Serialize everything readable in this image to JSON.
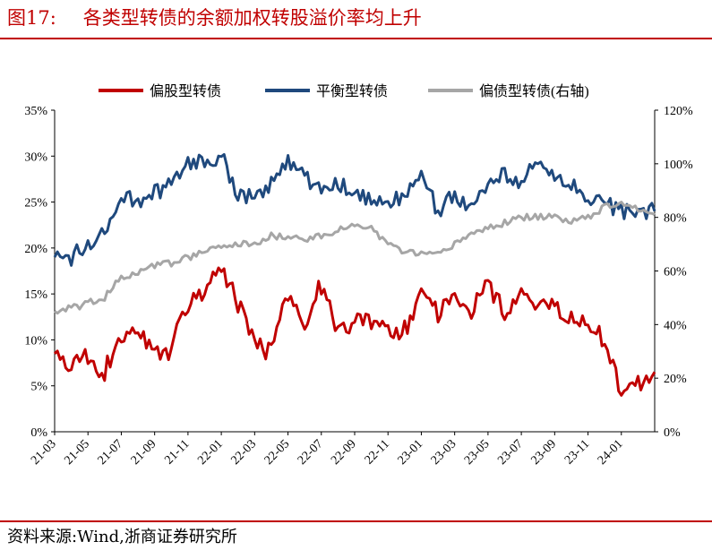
{
  "figure": {
    "label": "图17:",
    "title": "各类型转债的余额加权转股溢价率均上升",
    "source": "资料来源:Wind,浙商证券研究所"
  },
  "chart_data": {
    "type": "line",
    "legend_position": "top",
    "grid": false,
    "x_ticks": [
      "21-03",
      "21-05",
      "21-07",
      "21-09",
      "21-11",
      "22-01",
      "22-03",
      "22-05",
      "22-07",
      "22-09",
      "22-11",
      "23-01",
      "23-03",
      "23-05",
      "23-07",
      "23-09",
      "23-11",
      "24-01"
    ],
    "x_range": [
      "2021-03",
      "2024-03"
    ],
    "y_left": {
      "range": [
        0,
        35
      ],
      "ticks": [
        "0%",
        "5%",
        "10%",
        "15%",
        "20%",
        "25%",
        "30%",
        "35%"
      ]
    },
    "y_right": {
      "range": [
        0,
        120
      ],
      "ticks": [
        "0%",
        "20%",
        "40%",
        "60%",
        "80%",
        "100%",
        "120%"
      ]
    },
    "series": [
      {
        "name": "偏股型转债",
        "color": "#c00000",
        "axis": "left",
        "points": [
          [
            "2021-03",
            8.5
          ],
          [
            "2021-04",
            7.5
          ],
          [
            "2021-05",
            8
          ],
          [
            "2021-06",
            6.5
          ],
          [
            "2021-07",
            10.5
          ],
          [
            "2021-08",
            11
          ],
          [
            "2021-09",
            8
          ],
          [
            "2021-10",
            9
          ],
          [
            "2021-11",
            14
          ],
          [
            "2021-12",
            15
          ],
          [
            "2022-01",
            18
          ],
          [
            "2022-02",
            14
          ],
          [
            "2022-03",
            10
          ],
          [
            "2022-04",
            8.5
          ],
          [
            "2022-05",
            15
          ],
          [
            "2022-06",
            12
          ],
          [
            "2022-07",
            16
          ],
          [
            "2022-08",
            11
          ],
          [
            "2022-09",
            12
          ],
          [
            "2022-10",
            12
          ],
          [
            "2022-11",
            11
          ],
          [
            "2022-12",
            11
          ],
          [
            "2023-01",
            15
          ],
          [
            "2023-02",
            13
          ],
          [
            "2023-03",
            15
          ],
          [
            "2023-04",
            13
          ],
          [
            "2023-05",
            16
          ],
          [
            "2023-06",
            13
          ],
          [
            "2023-07",
            15
          ],
          [
            "2023-08",
            14
          ],
          [
            "2023-09",
            14
          ],
          [
            "2023-10",
            12.5
          ],
          [
            "2023-11",
            12
          ],
          [
            "2023-12",
            10
          ],
          [
            "2024-01",
            4
          ],
          [
            "2024-02",
            5
          ],
          [
            "2024-03",
            6.5
          ]
        ]
      },
      {
        "name": "平衡型转债",
        "color": "#1f497d",
        "axis": "left",
        "points": [
          [
            "2021-03",
            19
          ],
          [
            "2021-04",
            19
          ],
          [
            "2021-05",
            20.5
          ],
          [
            "2021-06",
            22
          ],
          [
            "2021-07",
            26
          ],
          [
            "2021-08",
            25
          ],
          [
            "2021-09",
            26
          ],
          [
            "2021-10",
            27
          ],
          [
            "2021-11",
            29
          ],
          [
            "2021-12",
            29.5
          ],
          [
            "2022-01",
            30
          ],
          [
            "2022-02",
            26
          ],
          [
            "2022-03",
            25.5
          ],
          [
            "2022-04",
            27
          ],
          [
            "2022-05",
            29.5
          ],
          [
            "2022-06",
            28
          ],
          [
            "2022-07",
            26
          ],
          [
            "2022-08",
            27
          ],
          [
            "2022-09",
            26
          ],
          [
            "2022-10",
            25
          ],
          [
            "2022-11",
            24.5
          ],
          [
            "2022-12",
            26
          ],
          [
            "2023-01",
            28
          ],
          [
            "2023-02",
            24
          ],
          [
            "2023-03",
            26
          ],
          [
            "2023-04",
            24
          ],
          [
            "2023-05",
            27
          ],
          [
            "2023-06",
            28
          ],
          [
            "2023-07",
            27
          ],
          [
            "2023-08",
            29.5
          ],
          [
            "2023-09",
            28
          ],
          [
            "2023-10",
            27
          ],
          [
            "2023-11",
            25
          ],
          [
            "2023-12",
            25
          ],
          [
            "2024-01",
            24
          ],
          [
            "2024-02",
            24
          ],
          [
            "2024-03",
            24
          ]
        ]
      },
      {
        "name": "偏债型转债(右轴)",
        "color": "#a6a6a6",
        "axis": "right",
        "points": [
          [
            "2021-03",
            45
          ],
          [
            "2021-04",
            46
          ],
          [
            "2021-05",
            48
          ],
          [
            "2021-06",
            50
          ],
          [
            "2021-07",
            58
          ],
          [
            "2021-08",
            59
          ],
          [
            "2021-09",
            62
          ],
          [
            "2021-10",
            63
          ],
          [
            "2021-11",
            65
          ],
          [
            "2021-12",
            67
          ],
          [
            "2022-01",
            69
          ],
          [
            "2022-02",
            70
          ],
          [
            "2022-03",
            70
          ],
          [
            "2022-04",
            73
          ],
          [
            "2022-05",
            73
          ],
          [
            "2022-06",
            72
          ],
          [
            "2022-07",
            73
          ],
          [
            "2022-08",
            75
          ],
          [
            "2022-09",
            77
          ],
          [
            "2022-10",
            76
          ],
          [
            "2022-11",
            70
          ],
          [
            "2022-12",
            67
          ],
          [
            "2023-01",
            66
          ],
          [
            "2023-02",
            66
          ],
          [
            "2023-03",
            70
          ],
          [
            "2023-04",
            74
          ],
          [
            "2023-05",
            76
          ],
          [
            "2023-06",
            78
          ],
          [
            "2023-07",
            80
          ],
          [
            "2023-08",
            80
          ],
          [
            "2023-09",
            80
          ],
          [
            "2023-10",
            79
          ],
          [
            "2023-11",
            80
          ],
          [
            "2023-12",
            84
          ],
          [
            "2024-01",
            86
          ],
          [
            "2024-02",
            83
          ],
          [
            "2024-03",
            81
          ]
        ]
      }
    ]
  }
}
